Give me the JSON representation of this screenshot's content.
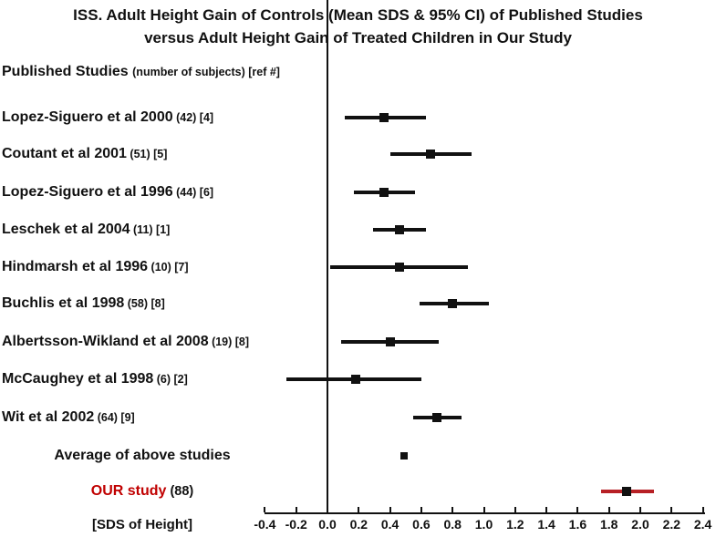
{
  "title": {
    "line1": "ISS. Adult Height Gain of Controls (Mean SDS & 95% CI) of Published Studies",
    "line2": "versus Adult Height Gain of Treated Children in Our Study"
  },
  "header": {
    "main": "Published Studies",
    "sub": "(number of subjects) [ref #]"
  },
  "axis": {
    "label": "[SDS of Height]",
    "ticks": [
      "-0.4",
      "-0.2",
      "0.0",
      "0.2",
      "0.4",
      "0.6",
      "0.8",
      "1.0",
      "1.2",
      "1.4",
      "1.6",
      "1.8",
      "2.0",
      "2.2",
      "2.4"
    ]
  },
  "colors": {
    "ink": "#111111",
    "red_text": "#c00000",
    "red_line": "#b72025"
  },
  "chart_data": {
    "type": "forest",
    "title": "ISS. Adult Height Gain of Controls (Mean SDS & 95% CI) of Published Studies versus Adult Height Gain of Treated Children in Our Study",
    "xlabel": "[SDS of Height]",
    "xlim": [
      -0.4,
      2.4
    ],
    "x_tick_step": 0.2,
    "zero_reference_line": 0.0,
    "studies": [
      {
        "name": "Lopez-Siguero et al 2000",
        "sub": "(42) [4]",
        "mean": 0.36,
        "ci_low": 0.11,
        "ci_high": 0.63,
        "color": "black",
        "align": "left"
      },
      {
        "name": "Coutant et al 2001",
        "sub": "(51) [5]",
        "mean": 0.66,
        "ci_low": 0.4,
        "ci_high": 0.92,
        "color": "black",
        "align": "left"
      },
      {
        "name": "Lopez-Siguero et al 1996",
        "sub": "(44) [6]",
        "mean": 0.36,
        "ci_low": 0.17,
        "ci_high": 0.56,
        "color": "black",
        "align": "left"
      },
      {
        "name": "Leschek et al 2004",
        "sub": "(11) [1]",
        "mean": 0.46,
        "ci_low": 0.29,
        "ci_high": 0.63,
        "color": "black",
        "align": "left"
      },
      {
        "name": "Hindmarsh et al 1996",
        "sub": "(10) [7]",
        "mean": 0.46,
        "ci_low": 0.02,
        "ci_high": 0.9,
        "color": "black",
        "align": "left"
      },
      {
        "name": "Buchlis et al 1998",
        "sub": "(58) [8]",
        "mean": 0.8,
        "ci_low": 0.59,
        "ci_high": 1.03,
        "color": "black",
        "align": "left"
      },
      {
        "name": "Albertsson-Wikland et al 2008",
        "sub": "(19) [8]",
        "mean": 0.4,
        "ci_low": 0.09,
        "ci_high": 0.71,
        "color": "black",
        "align": "left"
      },
      {
        "name": "McCaughey et al 1998",
        "sub": "(6) [2]",
        "mean": 0.18,
        "ci_low": -0.26,
        "ci_high": 0.6,
        "color": "black",
        "align": "left"
      },
      {
        "name": "Wit et al 2002",
        "sub": "(64) [9]",
        "mean": 0.7,
        "ci_low": 0.55,
        "ci_high": 0.86,
        "color": "black",
        "align": "left"
      },
      {
        "name": "Average of above studies",
        "sub": "",
        "mean": 0.49,
        "ci_low": null,
        "ci_high": null,
        "color": "black",
        "align": "center"
      },
      {
        "name": "OUR study",
        "sub": "(88)",
        "mean": 1.91,
        "ci_low": 1.75,
        "ci_high": 2.09,
        "color": "red",
        "align": "center"
      }
    ]
  }
}
